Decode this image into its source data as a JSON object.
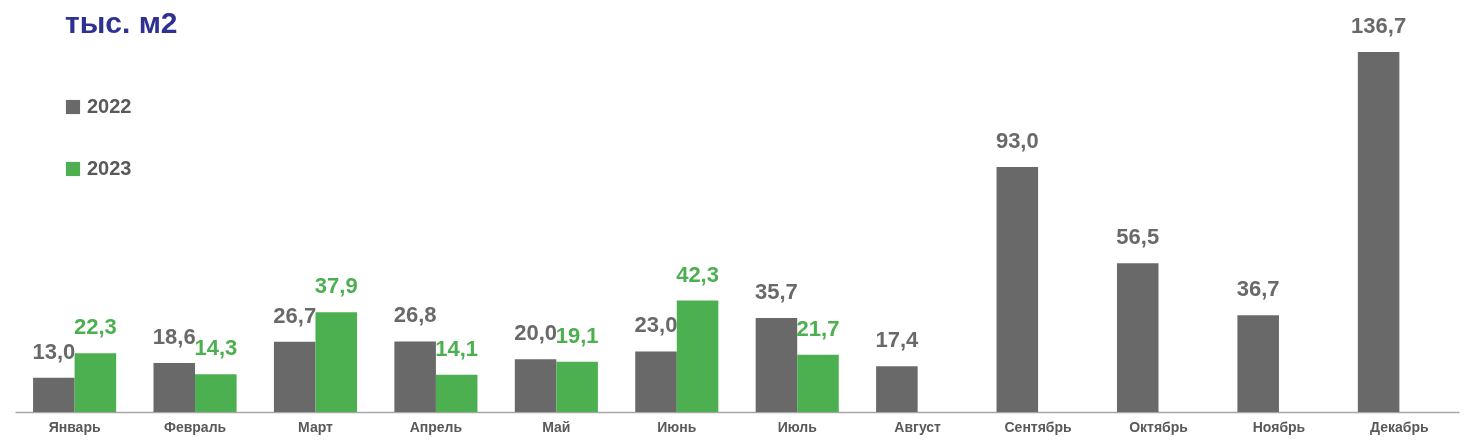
{
  "chart_data": {
    "type": "bar",
    "title": "тыс. м2",
    "categories": [
      "Январь",
      "Февраль",
      "Март",
      "Апрель",
      "Май",
      "Июнь",
      "Июль",
      "Август",
      "Сентябрь",
      "Октябрь",
      "Ноябрь",
      "Декабрь"
    ],
    "series": [
      {
        "name": "2022",
        "color": "#696969",
        "values": [
          13.0,
          18.6,
          26.7,
          26.8,
          20.0,
          23.0,
          35.7,
          17.4,
          93.0,
          56.5,
          36.7,
          136.7
        ],
        "value_labels": [
          "13,0",
          "18,6",
          "26,7",
          "26,8",
          "20,0",
          "23,0",
          "35,7",
          "17,4",
          "93,0",
          "56,5",
          "36,7",
          "136,7"
        ]
      },
      {
        "name": "2023",
        "color": "#4caf50",
        "values": [
          22.3,
          14.3,
          37.9,
          14.1,
          19.1,
          42.3,
          21.7,
          null,
          null,
          null,
          null,
          null
        ],
        "value_labels": [
          "22,3",
          "14,3",
          "37,9",
          "14,1",
          "19,1",
          "42,3",
          "21,7",
          null,
          null,
          null,
          null,
          null
        ]
      }
    ],
    "legend": "top left",
    "grid": false
  }
}
